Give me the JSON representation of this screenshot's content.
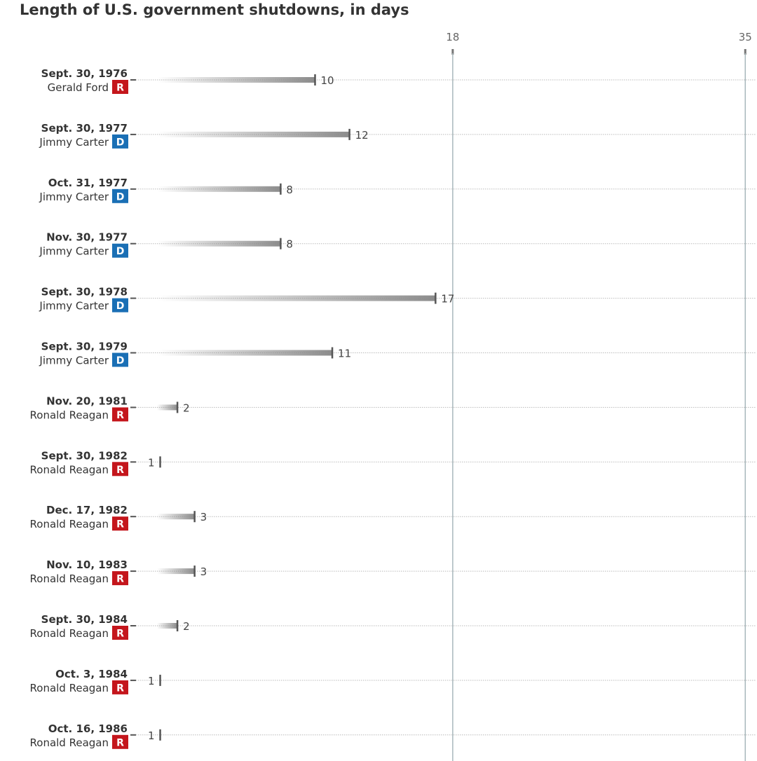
{
  "chart_data": {
    "type": "bar",
    "title": "Length of U.S. government shutdowns, in days",
    "x_ticks": [
      18,
      35
    ],
    "xlim": [
      0,
      35
    ],
    "grid": true,
    "rows": [
      {
        "date": "Sept. 30, 1976",
        "president": "Gerald Ford",
        "party": "R",
        "days": 10
      },
      {
        "date": "Sept. 30, 1977",
        "president": "Jimmy Carter",
        "party": "D",
        "days": 12
      },
      {
        "date": "Oct. 31, 1977",
        "president": "Jimmy Carter",
        "party": "D",
        "days": 8
      },
      {
        "date": "Nov. 30, 1977",
        "president": "Jimmy Carter",
        "party": "D",
        "days": 8
      },
      {
        "date": "Sept. 30, 1978",
        "president": "Jimmy Carter",
        "party": "D",
        "days": 17
      },
      {
        "date": "Sept. 30, 1979",
        "president": "Jimmy Carter",
        "party": "D",
        "days": 11
      },
      {
        "date": "Nov. 20, 1981",
        "president": "Ronald Reagan",
        "party": "R",
        "days": 2
      },
      {
        "date": "Sept. 30, 1982",
        "president": "Ronald Reagan",
        "party": "R",
        "days": 1
      },
      {
        "date": "Dec. 17, 1982",
        "president": "Ronald Reagan",
        "party": "R",
        "days": 3
      },
      {
        "date": "Nov. 10, 1983",
        "president": "Ronald Reagan",
        "party": "R",
        "days": 3
      },
      {
        "date": "Sept. 30, 1984",
        "president": "Ronald Reagan",
        "party": "R",
        "days": 2
      },
      {
        "date": "Oct. 3, 1984",
        "president": "Ronald Reagan",
        "party": "R",
        "days": 1
      },
      {
        "date": "Oct. 16, 1986",
        "president": "Ronald Reagan",
        "party": "R",
        "days": 1
      }
    ]
  },
  "colors": {
    "republican": "#c4161c",
    "democrat": "#1a6fb5",
    "bar": "#8c8c8c",
    "reference_line": "#a9b8bc",
    "grid": "#bbbbbb"
  }
}
